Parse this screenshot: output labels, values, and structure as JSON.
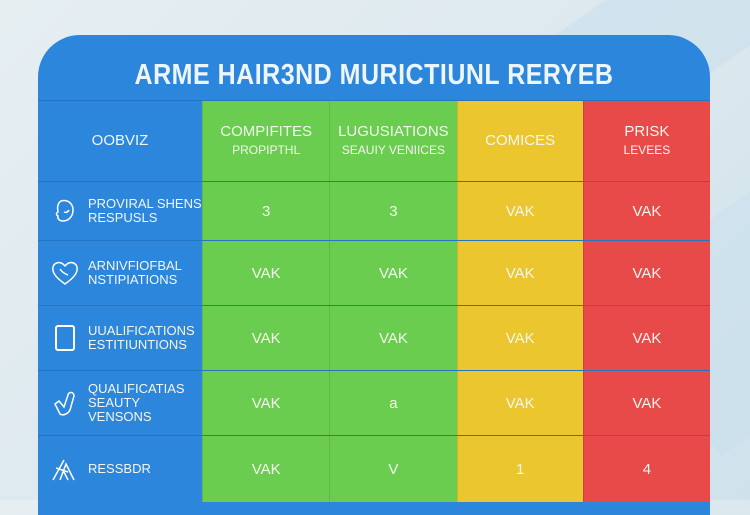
{
  "title": "ARME HAIR3ND MURICTIUNL RERYEB",
  "colors": {
    "label": "#2b86dc",
    "col1": "#6acd50",
    "col2": "#6acd50",
    "col3": "#ebc62e",
    "col4": "#e84a4a"
  },
  "header": {
    "label": "OOBVIZ",
    "columns": [
      {
        "title": "COMPIFITES",
        "sub": "PROPIPTHL"
      },
      {
        "title": "LUGUSIATIONS",
        "sub": "SEAUIY VENIICES"
      },
      {
        "title": "COMICES",
        "sub": ""
      },
      {
        "title": "PRISK",
        "sub": "LEVEES"
      }
    ]
  },
  "rows": [
    {
      "icon": "face-icon",
      "label1": "PROVIRAL SHENS",
      "label2": "RESPUSLS",
      "values": [
        "3",
        "3",
        "VAK",
        "VAK"
      ]
    },
    {
      "icon": "heart-icon",
      "label1": "ARNIVFIOFBAL",
      "label2": "NSTIPIATIONS",
      "values": [
        "VAK",
        "VAK",
        "VAK",
        "VAK"
      ]
    },
    {
      "icon": "tablet-icon",
      "label1": "UUALIFICATIONS",
      "label2": "ESTITIUNTIONS",
      "values": [
        "VAK",
        "VAK",
        "VAK",
        "VAK"
      ]
    },
    {
      "icon": "hand-icon",
      "label1": "QUALIFICATIAS",
      "label2": "SEAUTY VENSONS",
      "values": [
        "VAK",
        "a",
        "VAK",
        "VAK"
      ]
    },
    {
      "icon": "scissors-icon",
      "label1": "RESSBDR",
      "label2": "",
      "values": [
        "VAK",
        "V",
        "1",
        "4"
      ]
    }
  ]
}
